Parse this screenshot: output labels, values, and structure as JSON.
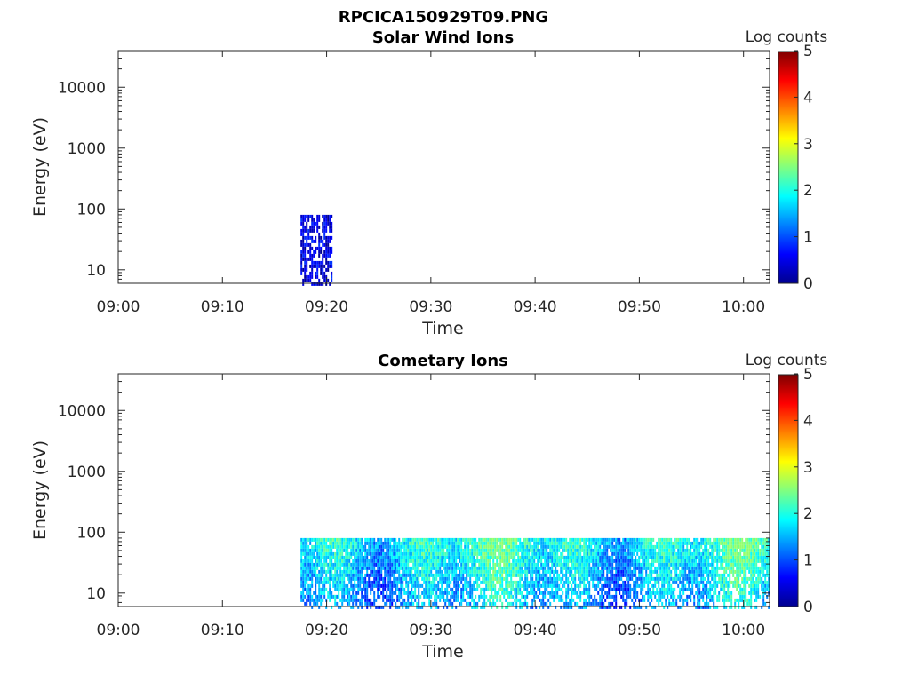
{
  "figure_title": "RPCICA150929T09.PNG",
  "colors": {
    "colormap": [
      "#00008f",
      "#0000ff",
      "#0080ff",
      "#00ffff",
      "#80ff80",
      "#ffff00",
      "#ff8000",
      "#ff0000",
      "#800000"
    ],
    "axis": "#262626",
    "background": "#ffffff"
  },
  "chart_data": [
    {
      "type": "heatmap",
      "title": "Solar Wind Ions",
      "xlabel": "Time",
      "ylabel": "Energy (eV)",
      "x_ticks": [
        "09:00",
        "09:10",
        "09:20",
        "09:30",
        "09:40",
        "09:50",
        "10:00"
      ],
      "x_range_min": [
        0,
        62.5
      ],
      "y_scale": "log",
      "y_range_eV": [
        6,
        40000
      ],
      "y_ticks": [
        10,
        100,
        1000,
        10000
      ],
      "y_tick_labels": [
        "10",
        "100",
        "1000",
        "10000"
      ],
      "colorbar": {
        "label": "Log counts",
        "range": [
          0,
          5
        ],
        "ticks": [
          "0",
          "1",
          "2",
          "3",
          "4",
          "5"
        ]
      },
      "data_regions": [
        {
          "start_min": 17.5,
          "end_min": 20.5,
          "energy_range_eV": [
            6,
            80
          ],
          "log_counts_range": [
            0,
            1
          ]
        }
      ]
    },
    {
      "type": "heatmap",
      "title": "Cometary Ions",
      "xlabel": "Time",
      "ylabel": "Energy (eV)",
      "x_ticks": [
        "09:00",
        "09:10",
        "09:20",
        "09:30",
        "09:40",
        "09:50",
        "10:00"
      ],
      "x_range_min": [
        0,
        62.5
      ],
      "y_scale": "log",
      "y_range_eV": [
        6,
        40000
      ],
      "y_ticks": [
        10,
        100,
        1000,
        10000
      ],
      "y_tick_labels": [
        "10",
        "100",
        "1000",
        "10000"
      ],
      "colorbar": {
        "label": "Log counts",
        "range": [
          0,
          5
        ],
        "ticks": [
          "0",
          "1",
          "2",
          "3",
          "4",
          "5"
        ]
      },
      "data_regions": [
        {
          "start_min": 17.5,
          "end_min": 62.5,
          "energy_range_eV": [
            6,
            80
          ],
          "log_counts_range": [
            0,
            2.6
          ]
        }
      ]
    }
  ]
}
